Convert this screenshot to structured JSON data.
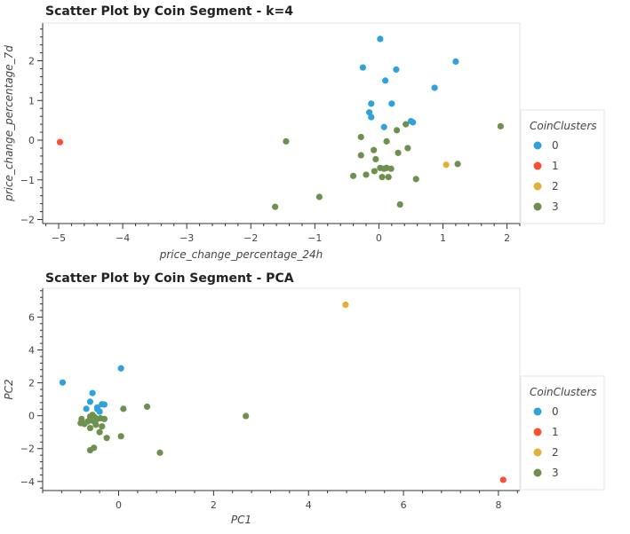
{
  "chart_data": [
    {
      "type": "scatter",
      "title": "Scatter Plot by Coin Segment - k=4",
      "xlabel": "price_change_percentage_24h",
      "ylabel": "price_change_percentage_7d",
      "xlim": [
        -5.25,
        2.2
      ],
      "ylim": [
        -2.1,
        2.95
      ],
      "x_ticks": [
        -5,
        -4,
        -3,
        -2,
        -1,
        0,
        1,
        2
      ],
      "y_ticks": [
        -2,
        -1,
        0,
        1,
        2
      ],
      "legend": {
        "title": "CoinClusters",
        "placement": "right"
      },
      "series": [
        {
          "name": "0",
          "color": "#30a2da",
          "points": [
            [
              0.02,
              2.55
            ],
            [
              -0.25,
              1.83
            ],
            [
              0.27,
              1.78
            ],
            [
              1.2,
              1.98
            ],
            [
              0.1,
              1.5
            ],
            [
              0.87,
              1.32
            ],
            [
              -0.12,
              0.92
            ],
            [
              0.2,
              0.92
            ],
            [
              -0.15,
              0.7
            ],
            [
              -0.12,
              0.58
            ],
            [
              0.5,
              0.48
            ],
            [
              0.53,
              0.45
            ],
            [
              0.08,
              0.33
            ]
          ]
        },
        {
          "name": "1",
          "color": "#fc4f30",
          "points": [
            [
              -4.98,
              -0.05
            ]
          ]
        },
        {
          "name": "2",
          "color": "#e5ae38",
          "points": [
            [
              1.05,
              -0.62
            ]
          ]
        },
        {
          "name": "3",
          "color": "#6d904f",
          "points": [
            [
              1.9,
              0.35
            ],
            [
              -1.45,
              -0.03
            ],
            [
              0.42,
              0.4
            ],
            [
              0.28,
              0.25
            ],
            [
              -0.28,
              0.08
            ],
            [
              0.12,
              -0.03
            ],
            [
              -0.08,
              -0.25
            ],
            [
              0.45,
              -0.2
            ],
            [
              -0.28,
              -0.38
            ],
            [
              0.3,
              -0.32
            ],
            [
              -0.05,
              -0.48
            ],
            [
              0.02,
              -0.7
            ],
            [
              0.08,
              -0.72
            ],
            [
              0.12,
              -0.7
            ],
            [
              -0.07,
              -0.78
            ],
            [
              0.19,
              -0.72
            ],
            [
              1.23,
              -0.6
            ],
            [
              -0.2,
              -0.87
            ],
            [
              -0.4,
              -0.9
            ],
            [
              0.05,
              -0.93
            ],
            [
              0.15,
              -0.93
            ],
            [
              0.58,
              -0.98
            ],
            [
              -0.93,
              -1.43
            ],
            [
              0.33,
              -1.62
            ],
            [
              -1.62,
              -1.68
            ]
          ]
        }
      ]
    },
    {
      "type": "scatter",
      "title": "Scatter Plot by Coin Segment - PCA",
      "xlabel": "PC1",
      "ylabel": "PC2",
      "xlim": [
        -1.6,
        8.45
      ],
      "ylim": [
        -4.55,
        7.75
      ],
      "x_ticks": [
        0,
        2,
        4,
        6,
        8
      ],
      "y_ticks": [
        -4,
        -2,
        0,
        2,
        4,
        6
      ],
      "legend": {
        "title": "CoinClusters",
        "placement": "right"
      },
      "series": [
        {
          "name": "0",
          "color": "#30a2da",
          "points": [
            [
              -1.18,
              2.02
            ],
            [
              0.05,
              2.88
            ],
            [
              -0.55,
              1.38
            ],
            [
              -0.6,
              0.85
            ],
            [
              -0.35,
              0.7
            ],
            [
              -0.3,
              0.68
            ],
            [
              -0.45,
              0.5
            ],
            [
              -0.68,
              0.42
            ],
            [
              -0.4,
              0.25
            ],
            [
              -0.45,
              0.4
            ]
          ]
        },
        {
          "name": "1",
          "color": "#fc4f30",
          "points": [
            [
              8.1,
              -3.9
            ]
          ]
        },
        {
          "name": "2",
          "color": "#e5ae38",
          "points": [
            [
              4.78,
              6.75
            ]
          ]
        },
        {
          "name": "3",
          "color": "#6d904f",
          "points": [
            [
              0.6,
              0.55
            ],
            [
              0.1,
              0.42
            ],
            [
              2.68,
              -0.02
            ],
            [
              -0.6,
              -0.05
            ],
            [
              -0.78,
              -0.2
            ],
            [
              -0.5,
              -0.1
            ],
            [
              -0.38,
              -0.15
            ],
            [
              -0.3,
              -0.2
            ],
            [
              -0.55,
              -0.3
            ],
            [
              -0.65,
              -0.35
            ],
            [
              -0.8,
              -0.45
            ],
            [
              -0.72,
              -0.5
            ],
            [
              -0.48,
              -0.55
            ],
            [
              -0.35,
              -0.65
            ],
            [
              -0.6,
              -0.75
            ],
            [
              -0.4,
              -1.0
            ],
            [
              0.05,
              -1.25
            ],
            [
              -0.25,
              -1.35
            ],
            [
              -0.52,
              -1.95
            ],
            [
              -0.6,
              -2.1
            ],
            [
              0.87,
              -2.25
            ],
            [
              -0.45,
              -0.2
            ],
            [
              -0.55,
              0.05
            ]
          ]
        }
      ]
    }
  ]
}
